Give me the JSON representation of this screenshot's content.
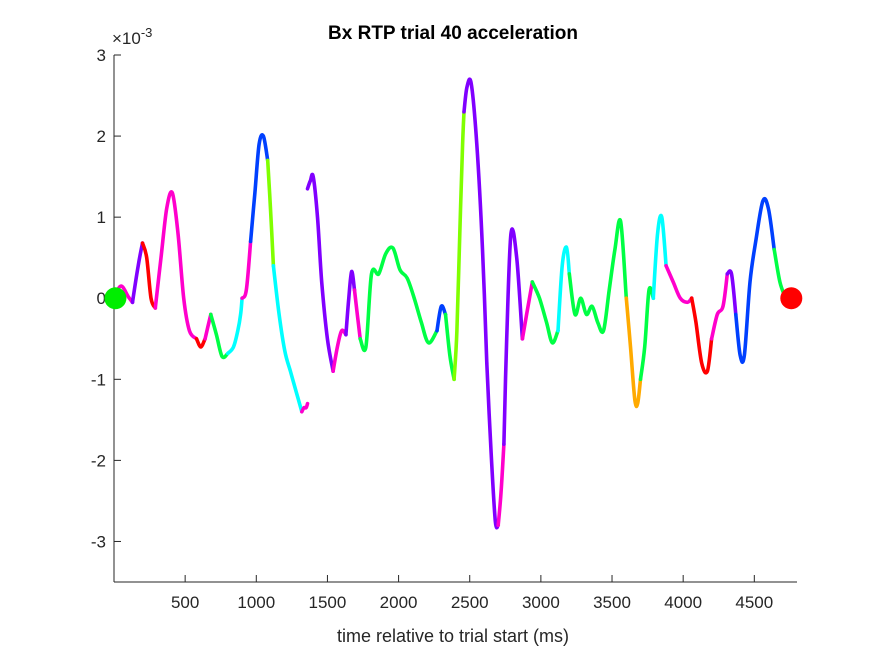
{
  "chart_data": {
    "type": "line",
    "title": "Bx  RTP trial 40 acceleration",
    "xlabel": "time relative to trial start (ms)",
    "ylabel": "",
    "xlim": [
      0,
      4800
    ],
    "ylim": [
      -3.5,
      3
    ],
    "exponent_label": {
      "base": "×10",
      "power": "-3"
    },
    "xticks": [
      500,
      1000,
      1500,
      2000,
      2500,
      3000,
      3500,
      4000,
      4500
    ],
    "xtick_labels": [
      "500",
      "1000",
      "1500",
      "2000",
      "2500",
      "3000",
      "3500",
      "4000",
      "4500"
    ],
    "yticks": [
      -3,
      -2,
      -1,
      0,
      1,
      2,
      3
    ],
    "ytick_labels": [
      "-3",
      "-2",
      "-1",
      "0",
      "1",
      "2",
      "3"
    ],
    "grid": false,
    "box": false,
    "series": [
      {
        "color": "#ff00cc",
        "x": [
          0,
          50,
          100,
          130
        ],
        "y": [
          0.02,
          0.15,
          0.02,
          -0.05
        ]
      },
      {
        "color": "#8000ff",
        "x": [
          130,
          170,
          200
        ],
        "y": [
          -0.05,
          0.4,
          0.68
        ]
      },
      {
        "color": "#ff0000",
        "x": [
          200,
          230,
          260,
          290
        ],
        "y": [
          0.68,
          0.5,
          0.0,
          -0.12
        ]
      },
      {
        "color": "#ff00cc",
        "x": [
          290,
          330,
          370,
          410,
          450,
          490,
          530,
          580
        ],
        "y": [
          -0.12,
          0.5,
          1.1,
          1.3,
          0.8,
          0.0,
          -0.4,
          -0.5
        ]
      },
      {
        "color": "#ff0000",
        "x": [
          580,
          610,
          640
        ],
        "y": [
          -0.5,
          -0.6,
          -0.5
        ]
      },
      {
        "color": "#ff00cc",
        "x": [
          640,
          680
        ],
        "y": [
          -0.5,
          -0.2
        ]
      },
      {
        "color": "#00ff44",
        "x": [
          680,
          720,
          760,
          800
        ],
        "y": [
          -0.2,
          -0.45,
          -0.72,
          -0.68
        ]
      },
      {
        "color": "#00ffff",
        "x": [
          800,
          840,
          870,
          890,
          900
        ],
        "y": [
          -0.68,
          -0.6,
          -0.4,
          -0.2,
          0.0
        ]
      },
      {
        "color": "#ff00cc",
        "x": [
          900,
          930,
          960
        ],
        "y": [
          0.0,
          0.1,
          0.7
        ]
      },
      {
        "color": "#0040ff",
        "x": [
          960,
          990,
          1020,
          1050,
          1080
        ],
        "y": [
          0.7,
          1.3,
          1.9,
          2.0,
          1.7
        ]
      },
      {
        "color": "#80ff00",
        "x": [
          1080,
          1100,
          1120
        ],
        "y": [
          1.7,
          1.1,
          0.4
        ]
      },
      {
        "color": "#00ffff",
        "x": [
          1120,
          1160,
          1200,
          1240,
          1280,
          1320
        ],
        "y": [
          0.4,
          -0.2,
          -0.65,
          -0.9,
          -1.15,
          -1.4
        ]
      },
      {
        "color": "#ff00cc",
        "x": [
          1320,
          1335,
          1350,
          1360
        ],
        "y": [
          -1.4,
          -1.35,
          -1.35,
          -1.3
        ]
      },
      {
        "color": "#8000ff",
        "x": [
          1360,
          1380,
          1400,
          1430,
          1460,
          1500,
          1540
        ],
        "y": [
          1.35,
          1.45,
          1.5,
          1.0,
          0.2,
          -0.5,
          -0.9
        ]
      },
      {
        "color": "#ff00cc",
        "x": [
          1540,
          1570,
          1600,
          1630
        ],
        "y": [
          -0.9,
          -0.6,
          -0.4,
          -0.45
        ]
      },
      {
        "color": "#8000ff",
        "x": [
          1630,
          1650,
          1670,
          1690
        ],
        "y": [
          -0.45,
          0.0,
          0.33,
          0.1
        ]
      },
      {
        "color": "#ff00cc",
        "x": [
          1690,
          1710,
          1730
        ],
        "y": [
          0.1,
          -0.2,
          -0.5
        ]
      },
      {
        "color": "#00ff44",
        "x": [
          1730,
          1770,
          1810,
          1860,
          1910,
          1960,
          2010,
          2060,
          2110,
          2160,
          2210,
          2270
        ],
        "y": [
          -0.5,
          -0.6,
          0.3,
          0.3,
          0.55,
          0.62,
          0.35,
          0.25,
          0.0,
          -0.3,
          -0.55,
          -0.4
        ]
      },
      {
        "color": "#0040ff",
        "x": [
          2270,
          2300,
          2330
        ],
        "y": [
          -0.4,
          -0.1,
          -0.2
        ]
      },
      {
        "color": "#00ff44",
        "x": [
          2330,
          2360,
          2390
        ],
        "y": [
          -0.2,
          -0.7,
          -1.0
        ]
      },
      {
        "color": "#80ff00",
        "x": [
          2390,
          2410,
          2430,
          2450,
          2460
        ],
        "y": [
          -1.0,
          -0.4,
          0.8,
          1.9,
          2.3
        ]
      },
      {
        "color": "#8000ff",
        "x": [
          2460,
          2480,
          2510,
          2550,
          2590,
          2620
        ],
        "y": [
          2.3,
          2.6,
          2.65,
          1.9,
          0.6,
          -0.8
        ]
      },
      {
        "color": "#8000ff",
        "x": [
          2620,
          2650,
          2680,
          2700
        ],
        "y": [
          -0.8,
          -1.9,
          -2.75,
          -2.8
        ]
      },
      {
        "color": "#ff00cc",
        "x": [
          2700,
          2720,
          2740
        ],
        "y": [
          -2.8,
          -2.4,
          -1.8
        ]
      },
      {
        "color": "#8000ff",
        "x": [
          2740,
          2760,
          2790,
          2830,
          2870
        ],
        "y": [
          -1.8,
          -0.5,
          0.8,
          0.5,
          -0.5
        ]
      },
      {
        "color": "#ff00cc",
        "x": [
          2870,
          2900,
          2940
        ],
        "y": [
          -0.5,
          -0.2,
          0.2
        ]
      },
      {
        "color": "#00ff44",
        "x": [
          2940,
          2990,
          3040,
          3080,
          3120
        ],
        "y": [
          0.2,
          0.0,
          -0.3,
          -0.55,
          -0.4
        ]
      },
      {
        "color": "#00ffff",
        "x": [
          3120,
          3150,
          3180,
          3200
        ],
        "y": [
          -0.4,
          0.4,
          0.63,
          0.3
        ]
      },
      {
        "color": "#00ff44",
        "x": [
          3200,
          3240,
          3280,
          3320,
          3360,
          3400,
          3440,
          3480,
          3520,
          3560,
          3600
        ],
        "y": [
          0.3,
          -0.2,
          0.0,
          -0.2,
          -0.1,
          -0.3,
          -0.4,
          0.1,
          0.6,
          0.95,
          0.0
        ]
      },
      {
        "color": "#ffaa00",
        "x": [
          3600,
          3630,
          3660,
          3680,
          3700
        ],
        "y": [
          0.0,
          -0.6,
          -1.25,
          -1.3,
          -1.0
        ]
      },
      {
        "color": "#00ff44",
        "x": [
          3700,
          3730,
          3760,
          3790
        ],
        "y": [
          -1.0,
          -0.6,
          0.1,
          0.0
        ]
      },
      {
        "color": "#00ffff",
        "x": [
          3790,
          3820,
          3850,
          3880
        ],
        "y": [
          0.0,
          0.8,
          1.0,
          0.4
        ]
      },
      {
        "color": "#ff00cc",
        "x": [
          3880,
          3930,
          3980,
          4030,
          4060
        ],
        "y": [
          0.4,
          0.2,
          0.0,
          -0.05,
          0.0
        ]
      },
      {
        "color": "#ff0000",
        "x": [
          4060,
          4090,
          4130,
          4170,
          4200
        ],
        "y": [
          0.0,
          -0.3,
          -0.8,
          -0.9,
          -0.5
        ]
      },
      {
        "color": "#ff00cc",
        "x": [
          4200,
          4240,
          4280,
          4310
        ],
        "y": [
          -0.5,
          -0.2,
          -0.1,
          0.3
        ]
      },
      {
        "color": "#8000ff",
        "x": [
          4310,
          4340,
          4370
        ],
        "y": [
          0.3,
          0.3,
          -0.2
        ]
      },
      {
        "color": "#0040ff",
        "x": [
          4370,
          4400,
          4430,
          4470,
          4510,
          4560,
          4600,
          4640
        ],
        "y": [
          -0.2,
          -0.7,
          -0.7,
          0.2,
          0.7,
          1.2,
          1.1,
          0.6
        ]
      },
      {
        "color": "#00ff44",
        "x": [
          4640,
          4680,
          4720
        ],
        "y": [
          0.6,
          0.2,
          0.0
        ]
      }
    ],
    "markers": [
      {
        "x": 10,
        "y": 0.0,
        "color": "#00ee00"
      },
      {
        "x": 4760,
        "y": 0.0,
        "color": "#ff0000"
      }
    ]
  }
}
